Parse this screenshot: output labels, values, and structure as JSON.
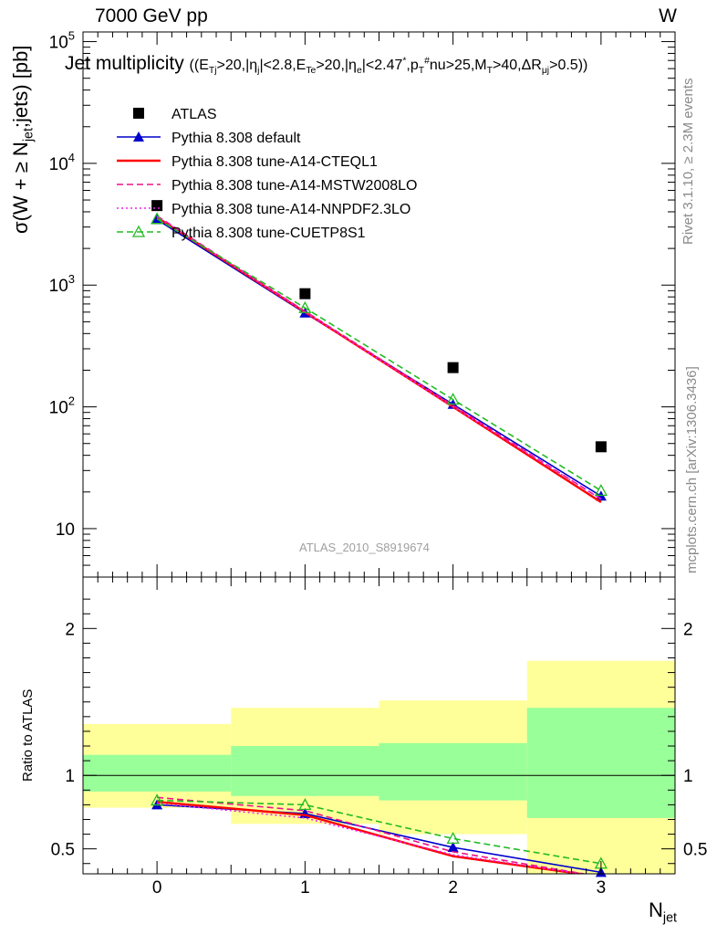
{
  "header": {
    "left": "7000 GeV pp",
    "right": "W"
  },
  "title": "Jet multiplicity ((E_{Tj}>20,|η_j|<2.8,E_{Te}>20,|η_e|<2.47^*,p_T^#nu>25,M_T>40,ΔR_{μj}>0.5))",
  "side_text": {
    "version": "Rivet 3.1.10, ≥ 2.3M events",
    "source": "mcplots.cern.ch [arXiv:1306.3436]"
  },
  "analysis_label": "ATLAS_2010_S8919674",
  "chart_data": [
    {
      "type": "scatter",
      "panel": "main",
      "ylabel": "σ(W + ≥ N_jet;jets) [pb]",
      "xlabel": "N_jet",
      "yscale": "log",
      "ylim": [
        4,
        120000
      ],
      "xlim": [
        -0.5,
        3.5
      ],
      "x_tick_labels": [
        "0",
        "1",
        "2",
        "3"
      ],
      "y_tick_labels": [
        "10",
        "10^2",
        "10^3",
        "10^4",
        "10^5"
      ],
      "x": [
        0,
        1,
        2,
        3
      ],
      "series": [
        {
          "name": "ATLAS",
          "color": "#000000",
          "marker": "square",
          "values": [
            4500,
            850,
            210,
            47
          ]
        },
        {
          "name": "Pythia 8.308 default",
          "color": "#0000cc",
          "marker": "triangle",
          "dash": "solid",
          "values": [
            3450,
            590,
            105,
            18.5
          ]
        },
        {
          "name": "Pythia 8.308 tune-A14-CTEQL1",
          "color": "#ff0000",
          "marker": "none",
          "dash": "solid",
          "values": [
            3600,
            600,
            100,
            16.5
          ]
        },
        {
          "name": "Pythia 8.308 tune-A14-MSTW2008LO",
          "color": "#ee1188",
          "marker": "none",
          "dash": "dashed",
          "values": [
            3700,
            610,
            103,
            17.5
          ]
        },
        {
          "name": "Pythia 8.308 tune-A14-NNPDF2.3LO",
          "color": "#ee22ee",
          "marker": "none",
          "dash": "dotted",
          "values": [
            3650,
            600,
            100,
            17.5
          ]
        },
        {
          "name": "Pythia 8.308 tune-CUETP8S1",
          "color": "#22bb22",
          "marker": "open-triangle",
          "dash": "dashed",
          "values": [
            3500,
            650,
            115,
            20.5
          ]
        }
      ],
      "grid": false,
      "legend": "top-left"
    },
    {
      "type": "line",
      "panel": "ratio",
      "ylabel": "Ratio to ATLAS",
      "ylim": [
        0.33,
        2.35
      ],
      "y_tick_labels": [
        "0.5",
        "1",
        "2"
      ],
      "x": [
        0,
        1,
        2,
        3
      ],
      "reference": 1,
      "bands": {
        "bin_edges": [
          -0.5,
          0.5,
          1.5,
          2.5,
          3.5
        ],
        "inner": [
          [
            0.89,
            1.14
          ],
          [
            0.86,
            1.2
          ],
          [
            0.83,
            1.22
          ],
          [
            0.71,
            1.46
          ]
        ],
        "outer": [
          [
            0.78,
            1.35
          ],
          [
            0.67,
            1.46
          ],
          [
            0.6,
            1.51
          ],
          [
            0.3,
            1.78
          ]
        ],
        "inner_color": "#99ff99",
        "outer_color": "#ffff99"
      },
      "series": [
        {
          "name": "Pythia 8.308 default",
          "color": "#0000cc",
          "values": [
            0.8,
            0.74,
            0.51,
            0.34
          ]
        },
        {
          "name": "Pythia 8.308 tune-A14-CTEQL1",
          "color": "#ff0000",
          "values": [
            0.82,
            0.73,
            0.45,
            0.31
          ]
        },
        {
          "name": "Pythia 8.308 tune-A14-MSTW2008LO",
          "color": "#ee1188",
          "values": [
            0.85,
            0.76,
            0.48,
            0.31
          ]
        },
        {
          "name": "Pythia 8.308 tune-A14-NNPDF2.3LO",
          "color": "#ee22ee",
          "values": [
            0.81,
            0.71,
            0.46,
            0.31
          ]
        },
        {
          "name": "Pythia 8.308 tune-CUETP8S1",
          "color": "#22bb22",
          "values": [
            0.83,
            0.8,
            0.57,
            0.4
          ]
        }
      ]
    }
  ]
}
